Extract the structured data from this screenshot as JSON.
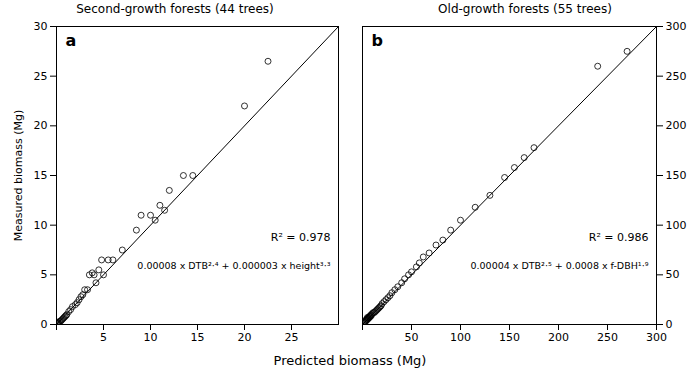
{
  "chart_data": [
    {
      "type": "scatter",
      "title": "Second-growth forests (44 trees)",
      "ylabel": "Measured biomass (Mg)",
      "xlabel": "Predicted biomass (Mg)",
      "annotations": [
        "a",
        "R² = 0.978",
        "0.00008 x DTB²⋅⁴ + 0.000003 x height³⋅³"
      ],
      "xlim": [
        0,
        30
      ],
      "ylim": [
        0,
        30
      ],
      "xticks": [
        {
          "value": 0,
          "label": null
        },
        5,
        10,
        15,
        20,
        25
      ],
      "yticks": [
        0,
        5,
        10,
        15,
        20,
        25,
        30
      ],
      "series": [
        {
          "type": "line",
          "color": "#000000",
          "x": [
            0,
            30
          ],
          "values": [
            0,
            30
          ]
        },
        {
          "type": "scatter",
          "color": "#000000",
          "marker": "circle",
          "x": [
            0.05,
            0.1,
            0.15,
            0.2,
            0.3,
            0.4,
            0.5,
            0.6,
            0.7,
            0.8,
            0.9,
            1.0,
            1.1,
            1.3,
            1.5,
            1.7,
            2.0,
            2.2,
            2.4,
            2.6,
            2.8,
            3.0,
            3.3,
            3.5,
            3.8,
            4.0,
            4.2,
            4.5,
            4.8,
            5.0,
            5.5,
            6.0,
            7.0,
            8.5,
            9.0,
            10.0,
            10.5,
            11.0,
            11.5,
            12.0,
            13.5,
            14.5,
            20.0,
            22.5
          ],
          "values": [
            0.05,
            0.1,
            0.15,
            0.2,
            0.3,
            0.3,
            0.4,
            0.5,
            0.6,
            0.7,
            0.8,
            0.9,
            1.0,
            1.3,
            1.5,
            1.8,
            2.0,
            2.2,
            2.5,
            2.8,
            3.0,
            3.5,
            3.5,
            5.0,
            5.2,
            5.0,
            4.2,
            5.5,
            6.5,
            5.0,
            6.5,
            6.5,
            7.5,
            9.5,
            11.0,
            11.0,
            10.5,
            12.0,
            11.5,
            13.5,
            15.0,
            15.0,
            22.0,
            26.5
          ]
        }
      ]
    },
    {
      "type": "scatter",
      "title": "Old-growth forests (55 trees)",
      "annotations": [
        "b",
        "R² = 0.986",
        "0.00004 x DTB²⋅⁵ + 0.0008 x f-DBH¹⋅⁹"
      ],
      "xlim": [
        0,
        300
      ],
      "ylim": [
        0,
        300
      ],
      "xticks": [
        {
          "value": 0,
          "label": null
        },
        50,
        100,
        150,
        200,
        250,
        300
      ],
      "yticks": [
        0,
        50,
        100,
        150,
        200,
        250,
        300
      ],
      "series": [
        {
          "type": "line",
          "color": "#000000",
          "x": [
            0,
            300
          ],
          "values": [
            0,
            300
          ]
        },
        {
          "type": "scatter",
          "color": "#000000",
          "marker": "circle",
          "x": [
            1,
            2,
            3,
            3,
            4,
            4,
            5,
            5,
            5,
            6,
            6,
            7,
            7,
            8,
            8,
            9,
            9,
            10,
            11,
            12,
            13,
            14,
            15,
            16,
            17,
            18,
            19,
            20,
            22,
            24,
            26,
            28,
            30,
            33,
            36,
            40,
            43,
            47,
            50,
            55,
            58,
            62,
            68,
            75,
            82,
            90,
            100,
            115,
            130,
            145,
            155,
            165,
            175,
            240,
            270
          ],
          "values": [
            1,
            2,
            3,
            4,
            4,
            5,
            5,
            6,
            7,
            6,
            7,
            7,
            8,
            8,
            9,
            9,
            10,
            11,
            12,
            12,
            13,
            14,
            15,
            16,
            17,
            18,
            19,
            21,
            23,
            25,
            27,
            29,
            32,
            35,
            38,
            42,
            46,
            50,
            53,
            58,
            62,
            68,
            72,
            80,
            85,
            95,
            105,
            118,
            130,
            148,
            158,
            168,
            178,
            260,
            275
          ]
        }
      ]
    }
  ]
}
